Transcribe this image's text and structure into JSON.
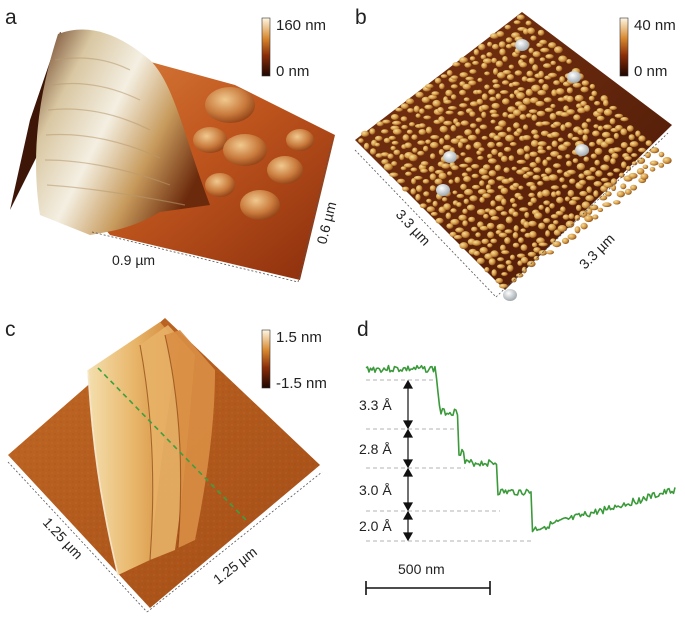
{
  "panels": {
    "a": {
      "letter": "a",
      "colorbar": {
        "max": "160 nm",
        "min": "0 nm"
      },
      "dim_x": "0.9 µm",
      "dim_y": "0.6 µm"
    },
    "b": {
      "letter": "b",
      "colorbar": {
        "max": "40 nm",
        "min": "0 nm"
      },
      "dim_left": "3.3 µm",
      "dim_right": "3.3 µm"
    },
    "c": {
      "letter": "c",
      "colorbar": {
        "max": "1.5 nm",
        "min": "-1.5 nm"
      },
      "dim_left": "1.25 µm",
      "dim_right": "1.25 µm"
    },
    "d": {
      "letter": "d",
      "step_labels": [
        "3.3 Å",
        "2.8 Å",
        "3.0 Å",
        "2.0 Å"
      ],
      "scale_bar": "500 nm"
    }
  },
  "colors": {
    "afm_dark": "#3a1004",
    "afm_mid": "#b8561c",
    "afm_light": "#f6ecd2",
    "profile_line": "#3a9a3a",
    "dashed_cut": "#3aa040"
  }
}
